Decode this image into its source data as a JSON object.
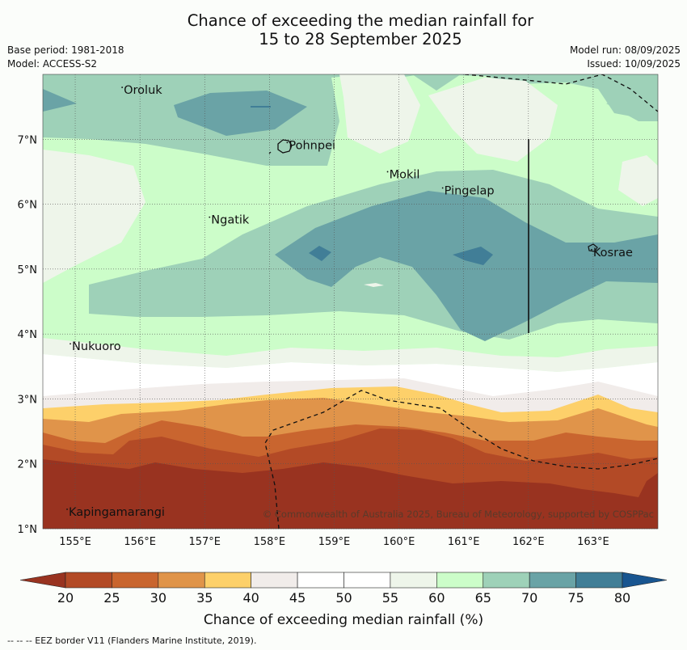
{
  "title": {
    "line1": "Chance of exceeding the median rainfall for",
    "line2": "15 to 28 September 2025"
  },
  "meta": {
    "base_period": "Base period: 1981-2018",
    "model": "Model: ACCESS-S2",
    "model_run": "Model run: 08/09/2025",
    "issued": "Issued: 10/09/2025"
  },
  "map": {
    "lon_ticks": [
      "155°E",
      "156°E",
      "157°E",
      "158°E",
      "159°E",
      "160°E",
      "161°E",
      "162°E",
      "163°E"
    ],
    "lat_ticks": [
      "1°N",
      "2°N",
      "3°N",
      "4°N",
      "5°N",
      "6°N",
      "7°N"
    ],
    "lon_range": [
      154.5,
      164.0
    ],
    "lat_range": [
      1.0,
      8.0
    ],
    "places": [
      {
        "name": "Oroluk",
        "lon": 155.75,
        "lat": 7.7
      },
      {
        "name": "Pohnpei",
        "lon": 158.3,
        "lat": 6.85
      },
      {
        "name": "Mokil",
        "lon": 159.85,
        "lat": 6.4
      },
      {
        "name": "Pingelap",
        "lon": 160.7,
        "lat": 6.15
      },
      {
        "name": "Ngatik",
        "lon": 157.1,
        "lat": 5.7
      },
      {
        "name": "Kosrae",
        "lon": 163.0,
        "lat": 5.2
      },
      {
        "name": "Nukuoro",
        "lon": 154.95,
        "lat": 3.75
      },
      {
        "name": "Kapingamarangi",
        "lon": 154.9,
        "lat": 1.2
      }
    ],
    "copyright": "© Commonwealth of Australia 2025, Bureau of Meteorology, supported by COSPPac"
  },
  "colorbar": {
    "ticks": [
      "20",
      "25",
      "30",
      "35",
      "40",
      "45",
      "50",
      "55",
      "60",
      "65",
      "70",
      "75",
      "80"
    ],
    "colors": [
      "#b34a26",
      "#c9652f",
      "#e0944a",
      "#fdd06a",
      "#f1ecea",
      "#ffffff",
      "#ffffff",
      "#eef5ea",
      "#ccfdc9",
      "#9ed1b8",
      "#6aa3a6",
      "#417e97"
    ],
    "low_extend_color": "#993320",
    "high_extend_color": "#185590",
    "label": "Chance of exceeding median rainfall (%)"
  },
  "footnote": "--  --  -- EEZ border V11 (Flanders Marine Institute, 2019)."
}
